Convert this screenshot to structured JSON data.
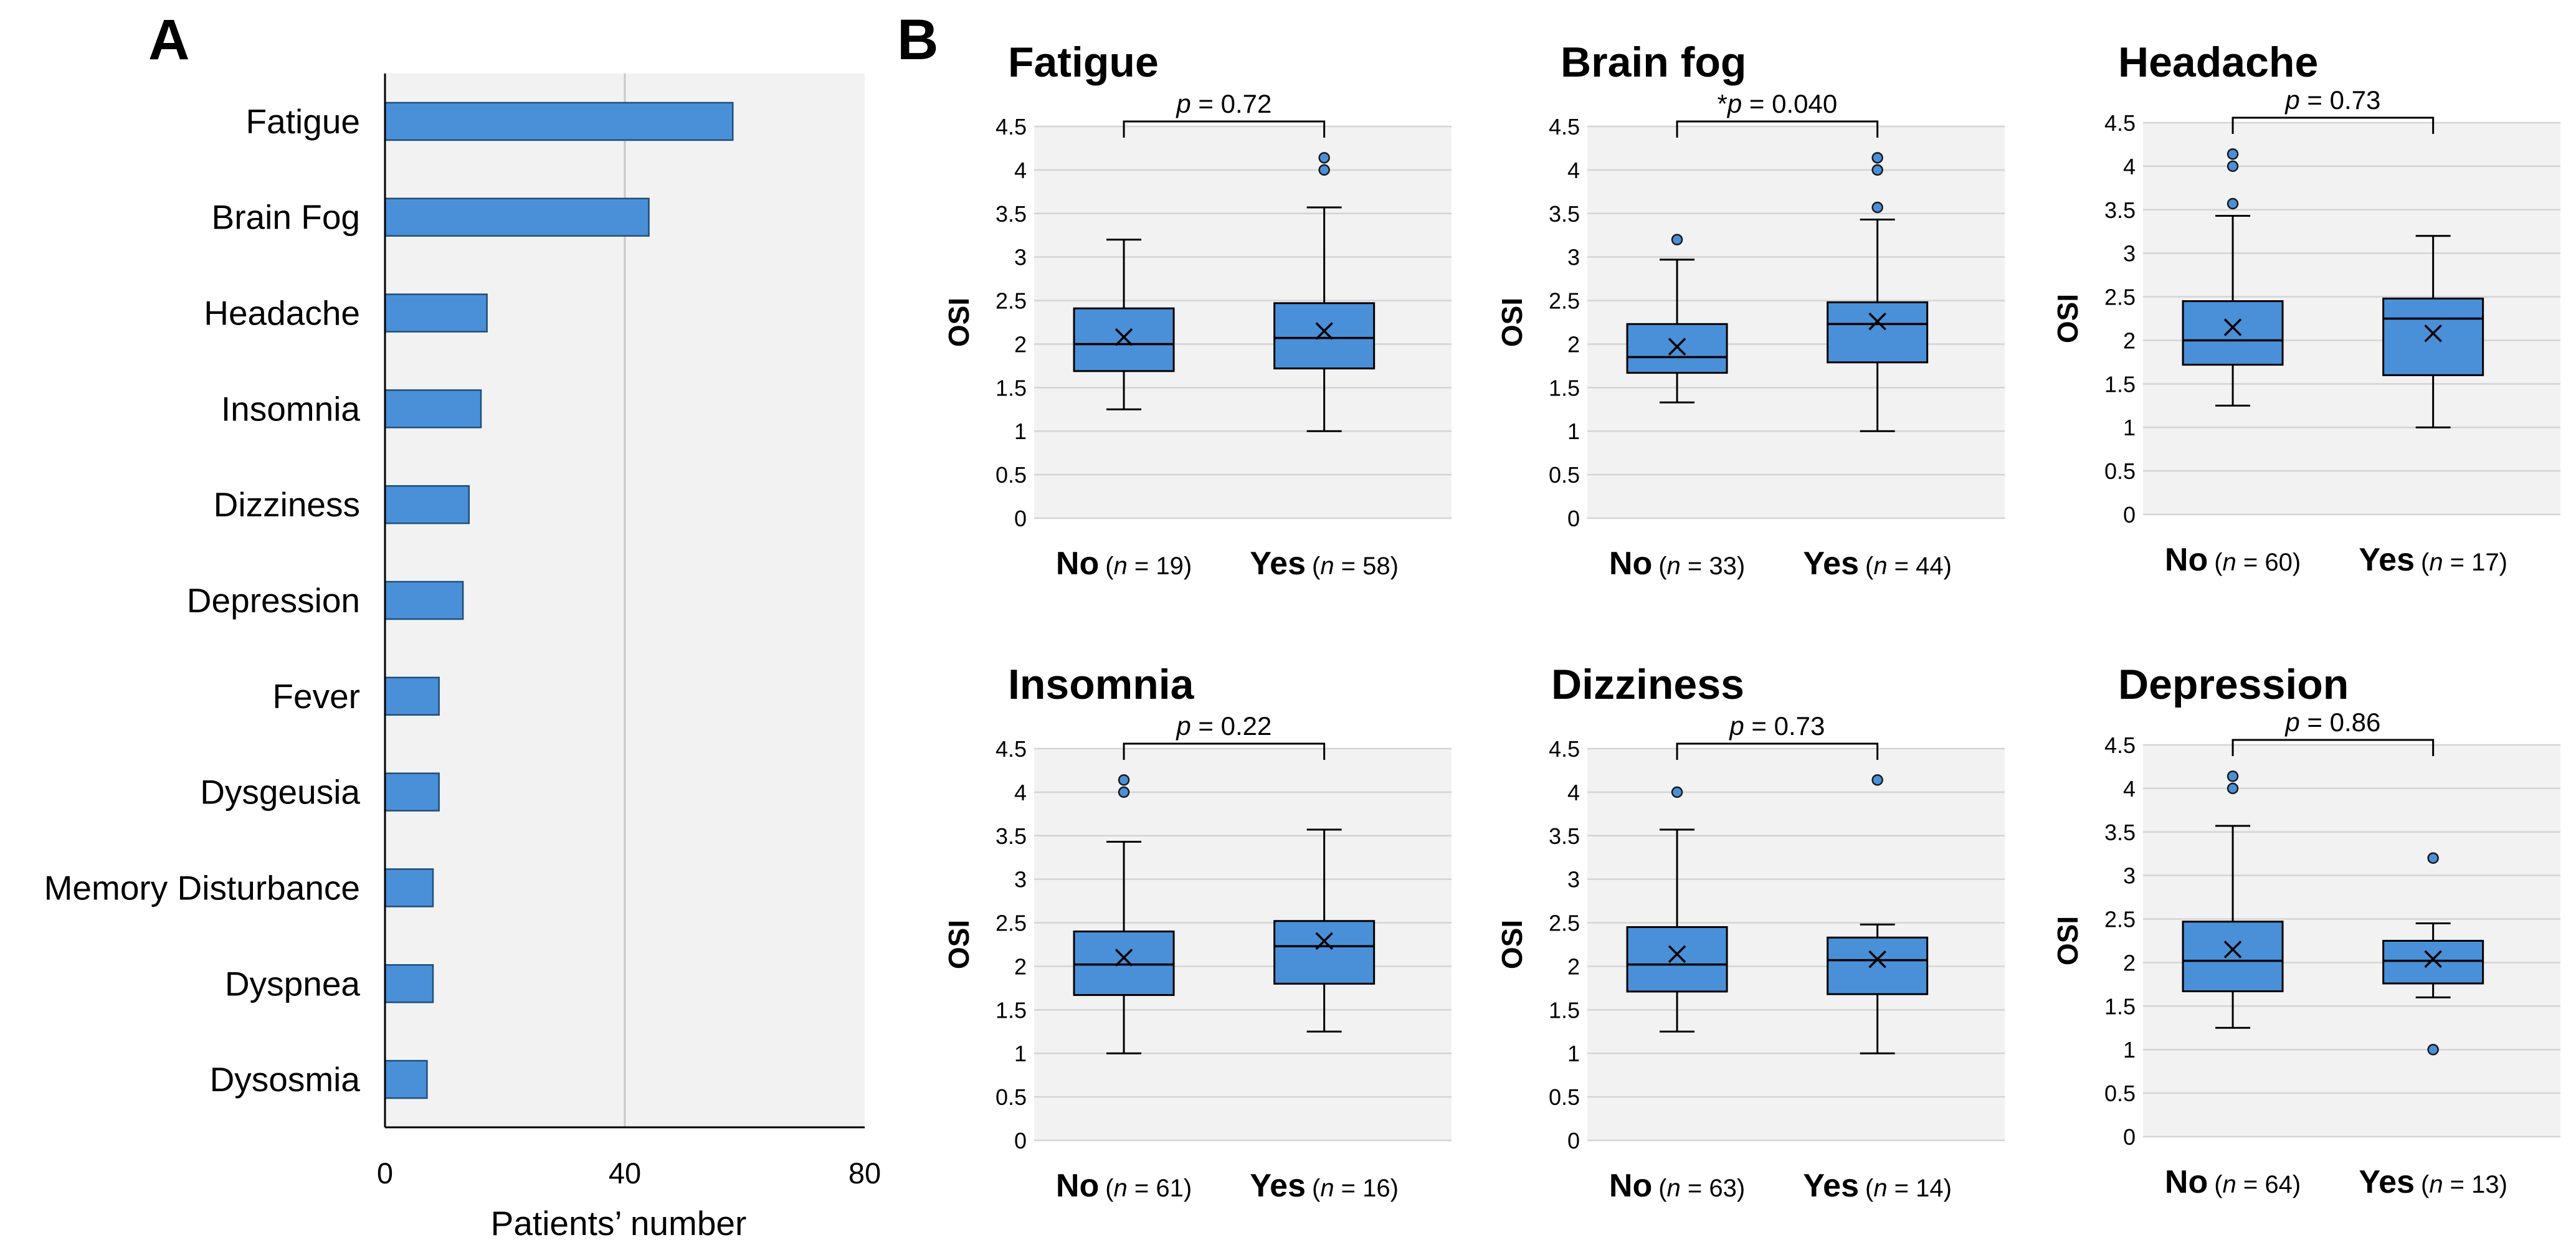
{
  "chart_data": [
    {
      "panel": "A",
      "type": "bar",
      "orientation": "horizontal",
      "categories": [
        "Fatigue",
        "Brain Fog",
        "Headache",
        "Insomnia",
        "Dizziness",
        "Depression",
        "Fever",
        "Dysgeusia",
        "Memory Disturbance",
        "Dyspnea",
        "Dysosmia"
      ],
      "values": [
        58,
        44,
        17,
        16,
        14,
        13,
        9,
        9,
        8,
        8,
        7
      ],
      "xlabel": "Patients’ number",
      "xlim": [
        0,
        80
      ],
      "xticks": [
        "0",
        "40",
        "80"
      ],
      "grid": "vertical line at 40",
      "bar_color": "#4a90d9"
    },
    {
      "panel": "B",
      "type": "box",
      "ylabel": "OSI",
      "ylim": [
        0,
        4.5
      ],
      "yticks": [
        "0",
        "0.5",
        "1",
        "1.5",
        "2",
        "2.5",
        "3",
        "3.5",
        "4",
        "4.5"
      ],
      "box_color": "#4a90d9",
      "panels": [
        {
          "title": "Fatigue",
          "p_prefix": "",
          "p_label": "p = 0.72",
          "groups": [
            {
              "label": "No",
              "n_text": "(n = 19)",
              "whisker_low": 1.25,
              "q1": 1.69,
              "median": 2.0,
              "q3": 2.41,
              "whisker_high": 3.2,
              "mean": 2.08,
              "outliers": []
            },
            {
              "label": "Yes",
              "n_text": "(n = 58)",
              "whisker_low": 1.0,
              "q1": 1.72,
              "median": 2.07,
              "q3": 2.47,
              "whisker_high": 3.57,
              "mean": 2.15,
              "outliers": [
                4.0,
                4.14
              ]
            }
          ]
        },
        {
          "title": "Brain fog",
          "p_prefix": "*",
          "p_label": "p = 0.040",
          "groups": [
            {
              "label": "No",
              "n_text": "(n = 33)",
              "whisker_low": 1.33,
              "q1": 1.67,
              "median": 1.85,
              "q3": 2.23,
              "whisker_high": 2.97,
              "mean": 1.97,
              "outliers": [
                3.2
              ]
            },
            {
              "label": "Yes",
              "n_text": "(n = 44)",
              "whisker_low": 1.0,
              "q1": 1.79,
              "median": 2.23,
              "q3": 2.48,
              "whisker_high": 3.43,
              "mean": 2.26,
              "outliers": [
                3.57,
                4.0,
                4.14
              ]
            }
          ]
        },
        {
          "title": "Headache",
          "p_prefix": "",
          "p_label": "p = 0.73",
          "groups": [
            {
              "label": "No",
              "n_text": "(n = 60)",
              "whisker_low": 1.25,
              "q1": 1.72,
              "median": 2.0,
              "q3": 2.45,
              "whisker_high": 3.43,
              "mean": 2.15,
              "outliers": [
                3.57,
                4.0,
                4.14
              ]
            },
            {
              "label": "Yes",
              "n_text": "(n = 17)",
              "whisker_low": 1.0,
              "q1": 1.6,
              "median": 2.25,
              "q3": 2.48,
              "whisker_high": 3.2,
              "mean": 2.08,
              "outliers": []
            }
          ]
        },
        {
          "title": "Insomnia",
          "p_prefix": "",
          "p_label": "p = 0.22",
          "groups": [
            {
              "label": "No",
              "n_text": "(n = 61)",
              "whisker_low": 1.0,
              "q1": 1.67,
              "median": 2.02,
              "q3": 2.4,
              "whisker_high": 3.43,
              "mean": 2.1,
              "outliers": [
                4.0,
                4.14
              ]
            },
            {
              "label": "Yes",
              "n_text": "(n = 16)",
              "whisker_low": 1.25,
              "q1": 1.8,
              "median": 2.23,
              "q3": 2.52,
              "whisker_high": 3.57,
              "mean": 2.29,
              "outliers": []
            }
          ]
        },
        {
          "title": "Dizziness",
          "p_prefix": "",
          "p_label": "p = 0.73",
          "groups": [
            {
              "label": "No",
              "n_text": "(n = 63)",
              "whisker_low": 1.25,
              "q1": 1.71,
              "median": 2.02,
              "q3": 2.45,
              "whisker_high": 3.57,
              "mean": 2.14,
              "outliers": [
                4.0
              ]
            },
            {
              "label": "Yes",
              "n_text": "(n = 14)",
              "whisker_low": 1.0,
              "q1": 1.68,
              "median": 2.07,
              "q3": 2.33,
              "whisker_high": 2.48,
              "mean": 2.08,
              "outliers": [
                4.14
              ]
            }
          ]
        },
        {
          "title": "Depression",
          "p_prefix": "",
          "p_label": "p = 0.86",
          "groups": [
            {
              "label": "No",
              "n_text": "(n = 64)",
              "whisker_low": 1.25,
              "q1": 1.67,
              "median": 2.02,
              "q3": 2.47,
              "whisker_high": 3.57,
              "mean": 2.15,
              "outliers": [
                4.0,
                4.14
              ]
            },
            {
              "label": "Yes",
              "n_text": "(n = 13)",
              "whisker_low": 1.6,
              "q1": 1.76,
              "median": 2.02,
              "q3": 2.25,
              "whisker_high": 2.45,
              "mean": 2.04,
              "outliers": [
                1.0,
                3.2
              ]
            }
          ]
        }
      ]
    }
  ],
  "labels": {
    "panel_a": "A",
    "panel_b": "B"
  }
}
